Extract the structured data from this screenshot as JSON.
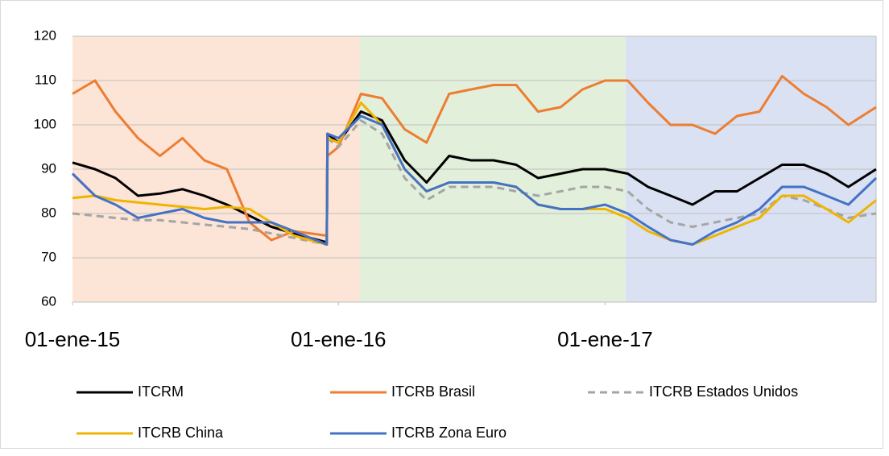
{
  "chart_data": {
    "type": "line",
    "x": [
      "2015-01-01",
      "2015-02-01",
      "2015-03-01",
      "2015-04-01",
      "2015-05-01",
      "2015-06-01",
      "2015-07-01",
      "2015-08-01",
      "2015-09-01",
      "2015-10-01",
      "2015-11-01",
      "2015-12-16",
      "2015-12-17",
      "2016-01-01",
      "2016-02-01",
      "2016-03-01",
      "2016-04-01",
      "2016-05-01",
      "2016-06-01",
      "2016-07-01",
      "2016-08-01",
      "2016-09-01",
      "2016-10-01",
      "2016-11-01",
      "2016-12-01",
      "2017-01-01",
      "2017-02-01",
      "2017-03-01",
      "2017-04-01",
      "2017-05-01",
      "2017-06-01",
      "2017-07-01",
      "2017-08-01",
      "2017-09-01",
      "2017-10-01",
      "2017-11-01",
      "2017-12-01",
      "2018-01-08"
    ],
    "series": [
      {
        "name": "ITCRM",
        "color": "#000000",
        "dash": false,
        "values": [
          91.5,
          90,
          88,
          84,
          84.5,
          85.5,
          84,
          82,
          79.5,
          77,
          75.5,
          73.5,
          98,
          96,
          103,
          101,
          92,
          87,
          93,
          92,
          92,
          91,
          88,
          89,
          90,
          90,
          89,
          86,
          84,
          82,
          85,
          85,
          88,
          91,
          91,
          89,
          86,
          90
        ]
      },
      {
        "name": "ITCRB Brasil",
        "color": "#ED7D31",
        "dash": false,
        "values": [
          107,
          110,
          103,
          97,
          93,
          97,
          92,
          90,
          78,
          74,
          76,
          75,
          93,
          95,
          107,
          106,
          99,
          96,
          107,
          108,
          109,
          109,
          103,
          104,
          108,
          110,
          110,
          105,
          100,
          100,
          98,
          102,
          103,
          111,
          107,
          104,
          100,
          104
        ]
      },
      {
        "name": "ITCRB Estados Unidos",
        "color": "#A5A5A5",
        "dash": true,
        "values": [
          80,
          79.5,
          79,
          78.5,
          78.5,
          78,
          77.5,
          77,
          76.5,
          75.5,
          74.5,
          73,
          97,
          95,
          101,
          98,
          88,
          83,
          86,
          86,
          86,
          85,
          84,
          85,
          86,
          86,
          85,
          81,
          78,
          77,
          78,
          79,
          80,
          84,
          83,
          81,
          79,
          80
        ]
      },
      {
        "name": "ITCRB China",
        "color": "#F0B400",
        "dash": false,
        "values": [
          83.5,
          84,
          83,
          82.5,
          82,
          81.5,
          81,
          81.5,
          81,
          78,
          75,
          73,
          97,
          96,
          105,
          100,
          90,
          85,
          87,
          87,
          87,
          86,
          82,
          81,
          81,
          81,
          79,
          76,
          74,
          73,
          75,
          77,
          79,
          84,
          84,
          81,
          78,
          83
        ]
      },
      {
        "name": "ITCRB Zona Euro",
        "color": "#4472C4",
        "dash": false,
        "values": [
          89,
          84,
          82,
          79,
          80,
          81,
          79,
          78,
          78,
          78,
          76,
          73,
          98,
          97,
          102,
          100,
          90,
          85,
          87,
          87,
          87,
          86,
          82,
          81,
          81,
          82,
          80,
          77,
          74,
          73,
          76,
          78,
          81,
          86,
          86,
          84,
          82,
          88
        ]
      }
    ],
    "xlim": [
      "2015-01-01",
      "2018-01-08"
    ],
    "xticks": [
      {
        "value": "2015-01-01",
        "label": "01-ene-15"
      },
      {
        "value": "2016-01-01",
        "label": "01-ene-16"
      },
      {
        "value": "2017-01-01",
        "label": "01-ene-17"
      }
    ],
    "ylim": [
      60,
      120
    ],
    "yticks": [
      60,
      70,
      80,
      90,
      100,
      110,
      120
    ],
    "grid": true,
    "shaded_periods": [
      {
        "start": "2015-01-01",
        "end": "2016-01-30",
        "color": "#FCE4D6"
      },
      {
        "start": "2016-01-30",
        "end": "2017-01-29",
        "color": "#E2EFDA"
      },
      {
        "start": "2017-01-29",
        "end": "2018-01-08",
        "color": "#D9E1F2"
      }
    ],
    "legend": "bottom"
  }
}
